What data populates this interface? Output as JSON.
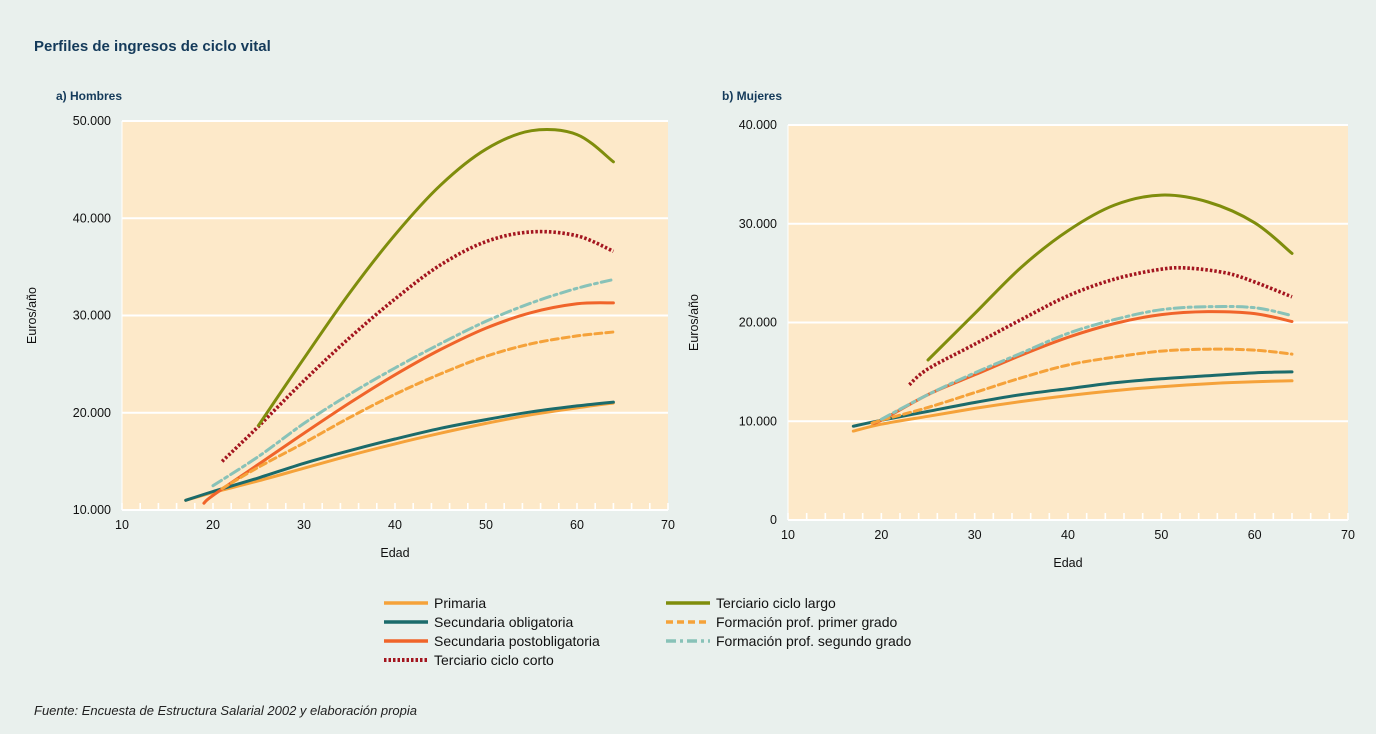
{
  "figure": {
    "title": "Perfiles de ingresos de ciclo vital",
    "source": "Fuente:  Encuesta de Estructura Salarial  2002 y elaboración propia"
  },
  "colors": {
    "background": "#e9f0ed",
    "plot_area": "#fde9c9",
    "grid": "#ffffff"
  },
  "legend": [
    {
      "label": "Primaria",
      "color": "#f5a23a",
      "style": "solid"
    },
    {
      "label": "Terciario ciclo largo",
      "color": "#7f8d0c",
      "style": "solid"
    },
    {
      "label": "Secundaria obligatoria",
      "color": "#1b6b6b",
      "style": "solid"
    },
    {
      "label": "Formación prof. primer grado",
      "color": "#f5a23a",
      "style": "dashed"
    },
    {
      "label": "Secundaria postobligatoria",
      "color": "#f0642a",
      "style": "solid"
    },
    {
      "label": "Formación prof. segundo grado",
      "color": "#88c2b8",
      "style": "dashdot"
    },
    {
      "label": "Terciario ciclo corto",
      "color": "#a3151f",
      "style": "dotted"
    }
  ],
  "chart_data": [
    {
      "type": "line",
      "panel_title": "a) Hombres",
      "xlabel": "Edad",
      "ylabel": "Euros/año",
      "xlim": [
        10,
        70
      ],
      "ylim": [
        10000,
        50000
      ],
      "xticks": [
        "10",
        "20",
        "30",
        "40",
        "50",
        "60",
        "70"
      ],
      "yticks": [
        "10.000",
        "20.000",
        "30.000",
        "40.000",
        "50.000"
      ],
      "ytick_values": [
        10000,
        20000,
        30000,
        40000,
        50000
      ],
      "grid": true,
      "series": [
        {
          "name": "Primaria",
          "x": [
            17,
            20,
            25,
            30,
            35,
            40,
            45,
            50,
            55,
            60,
            64
          ],
          "y": [
            11000,
            11800,
            13000,
            14300,
            15600,
            16800,
            17900,
            18900,
            19800,
            20500,
            21000
          ]
        },
        {
          "name": "Secundaria obligatoria",
          "x": [
            17,
            20,
            25,
            30,
            35,
            40,
            45,
            50,
            55,
            60,
            64
          ],
          "y": [
            11000,
            11900,
            13300,
            14800,
            16100,
            17300,
            18400,
            19300,
            20100,
            20700,
            21100
          ]
        },
        {
          "name": "Secundaria postobligatoria",
          "x": [
            19,
            20,
            25,
            30,
            35,
            40,
            45,
            50,
            55,
            60,
            64
          ],
          "y": [
            10700,
            11500,
            14700,
            17900,
            21000,
            23900,
            26500,
            28700,
            30300,
            31200,
            31300
          ]
        },
        {
          "name": "Terciario ciclo corto",
          "x": [
            21,
            25,
            30,
            35,
            40,
            45,
            50,
            55,
            60,
            64
          ],
          "y": [
            15000,
            18600,
            23300,
            27700,
            31700,
            35200,
            37600,
            38600,
            38200,
            36600
          ]
        },
        {
          "name": "Terciario ciclo largo",
          "x": [
            25,
            30,
            35,
            40,
            45,
            50,
            55,
            60,
            64
          ],
          "y": [
            18700,
            25600,
            32300,
            38300,
            43400,
            47100,
            49000,
            48600,
            45800
          ]
        },
        {
          "name": "Formación prof. primer grado",
          "x": [
            21,
            25,
            30,
            35,
            40,
            45,
            50,
            55,
            60,
            64
          ],
          "y": [
            12200,
            14400,
            16900,
            19500,
            21900,
            24000,
            25800,
            27100,
            27900,
            28300
          ]
        },
        {
          "name": "Formación prof. segundo grado",
          "x": [
            20,
            25,
            30,
            35,
            40,
            45,
            50,
            55,
            60,
            64
          ],
          "y": [
            12500,
            15500,
            18900,
            21900,
            24600,
            27100,
            29400,
            31300,
            32800,
            33700
          ]
        }
      ]
    },
    {
      "type": "line",
      "panel_title": "b) Mujeres",
      "xlabel": "Edad",
      "ylabel": "Euros/año",
      "xlim": [
        10,
        70
      ],
      "ylim": [
        0,
        40000
      ],
      "xticks": [
        "10",
        "20",
        "30",
        "40",
        "50",
        "60",
        "70"
      ],
      "yticks": [
        "0",
        "10.000",
        "20.000",
        "30.000",
        "40.000"
      ],
      "ytick_values": [
        0,
        10000,
        20000,
        30000,
        40000
      ],
      "grid": true,
      "series": [
        {
          "name": "Primaria",
          "x": [
            17,
            20,
            25,
            30,
            35,
            40,
            45,
            50,
            55,
            60,
            64
          ],
          "y": [
            9000,
            9700,
            10500,
            11300,
            12000,
            12600,
            13100,
            13500,
            13800,
            14000,
            14100
          ]
        },
        {
          "name": "Secundaria obligatoria",
          "x": [
            17,
            20,
            25,
            30,
            35,
            40,
            45,
            50,
            55,
            60,
            64
          ],
          "y": [
            9500,
            10100,
            11000,
            11900,
            12700,
            13300,
            13900,
            14300,
            14600,
            14900,
            15000
          ]
        },
        {
          "name": "Secundaria postobligatoria",
          "x": [
            19,
            20,
            25,
            30,
            35,
            40,
            45,
            50,
            55,
            60,
            64
          ],
          "y": [
            9800,
            10100,
            12700,
            14700,
            16700,
            18500,
            19900,
            20800,
            21100,
            20900,
            20100
          ]
        },
        {
          "name": "Terciario ciclo corto",
          "x": [
            23,
            25,
            30,
            35,
            40,
            45,
            50,
            53,
            57,
            60,
            64
          ],
          "y": [
            13700,
            15300,
            17800,
            20300,
            22700,
            24400,
            25400,
            25500,
            25000,
            24100,
            22600
          ]
        },
        {
          "name": "Terciario ciclo largo",
          "x": [
            25,
            30,
            35,
            40,
            45,
            50,
            55,
            60,
            64
          ],
          "y": [
            16200,
            20900,
            25600,
            29300,
            31900,
            32900,
            32200,
            30100,
            27000
          ]
        },
        {
          "name": "Formación prof. primer grado",
          "x": [
            19,
            20,
            25,
            30,
            35,
            40,
            45,
            50,
            55,
            60,
            64
          ],
          "y": [
            9800,
            10100,
            11400,
            12900,
            14400,
            15700,
            16500,
            17100,
            17300,
            17200,
            16800
          ]
        },
        {
          "name": "Formación prof. segundo grado",
          "x": [
            20,
            25,
            30,
            35,
            40,
            45,
            50,
            55,
            60,
            64
          ],
          "y": [
            10200,
            12700,
            14900,
            16900,
            18900,
            20300,
            21300,
            21600,
            21500,
            20700
          ]
        }
      ]
    }
  ]
}
